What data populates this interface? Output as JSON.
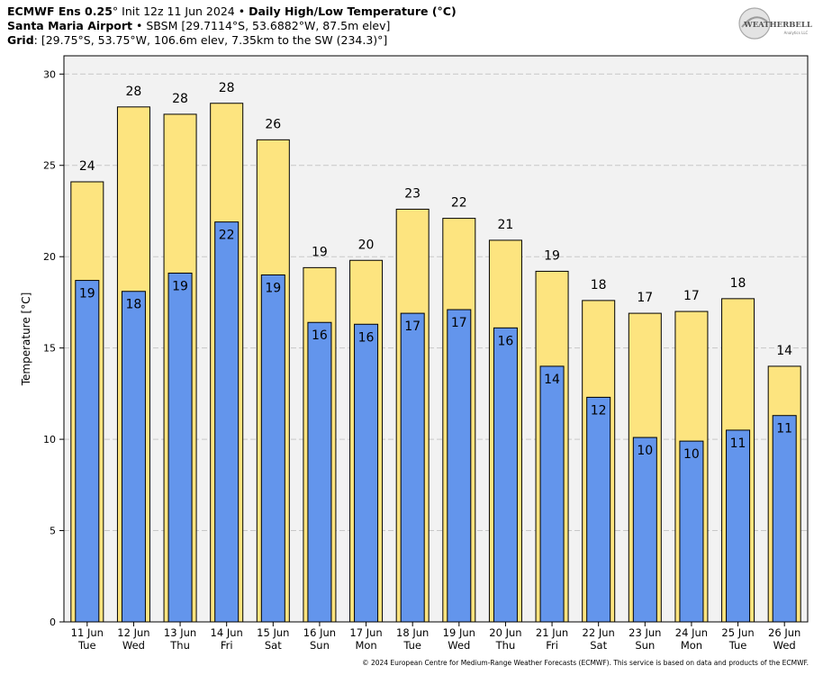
{
  "header": {
    "line1": {
      "model": "ECMWF Ens 0.25",
      "deg": "°",
      "init": " Init 12z 11 Jun 2024",
      "sep": " • ",
      "product": "Daily High/Low Temperature (°C)"
    },
    "line2": {
      "station": "Santa Maria Airport",
      "sep": " • ",
      "detail": "SBSM [29.7114°S, 53.6882°W, 87.5m elev]"
    },
    "line3": {
      "label": "Grid",
      "detail": ": [29.75°S, 53.75°W, 106.6m elev, 7.35km to the SW (234.3)°]"
    }
  },
  "logo": {
    "text": "WEATHERBELL",
    "subtext": "Analytics LLC"
  },
  "copyright": "© 2024 European Centre for Medium-Range Weather Forecasts (ECMWF). This service is based on data and products of the ECMWF.",
  "colors": {
    "high": "#fde47f",
    "low": "#6395ec",
    "plot_bg": "#f2f2f2",
    "grid": "#c8c8c8"
  },
  "chart_data": {
    "type": "bar",
    "title": "Daily High/Low Temperature (°C)",
    "ylabel": "Temperature [°C]",
    "xlabel": "",
    "ylim": [
      0,
      31
    ],
    "yticks": [
      0,
      5,
      10,
      15,
      20,
      25,
      30
    ],
    "grid": true,
    "categories": [
      "11 Jun",
      "12 Jun",
      "13 Jun",
      "14 Jun",
      "15 Jun",
      "16 Jun",
      "17 Jun",
      "18 Jun",
      "19 Jun",
      "20 Jun",
      "21 Jun",
      "22 Jun",
      "23 Jun",
      "24 Jun",
      "25 Jun",
      "26 Jun"
    ],
    "weekdays": [
      "Tue",
      "Wed",
      "Thu",
      "Fri",
      "Sat",
      "Sun",
      "Mon",
      "Tue",
      "Wed",
      "Thu",
      "Fri",
      "Sat",
      "Sun",
      "Mon",
      "Tue",
      "Wed"
    ],
    "series": [
      {
        "name": "High",
        "values": [
          24.1,
          28.2,
          27.8,
          28.4,
          26.4,
          19.4,
          19.8,
          22.6,
          22.1,
          20.9,
          19.2,
          17.6,
          16.9,
          17.0,
          17.7,
          14.0
        ],
        "labels": [
          "24",
          "28",
          "28",
          "28",
          "26",
          "19",
          "20",
          "23",
          "22",
          "21",
          "19",
          "18",
          "17",
          "17",
          "18",
          "14"
        ]
      },
      {
        "name": "Low",
        "values": [
          18.7,
          18.1,
          19.1,
          21.9,
          19.0,
          16.4,
          16.3,
          16.9,
          17.1,
          16.1,
          14.0,
          12.3,
          10.1,
          9.9,
          10.5,
          11.3
        ],
        "labels": [
          "19",
          "18",
          "19",
          "22",
          "19",
          "16",
          "16",
          "17",
          "17",
          "16",
          "14",
          "12",
          "10",
          "10",
          "11",
          "11"
        ]
      }
    ]
  }
}
